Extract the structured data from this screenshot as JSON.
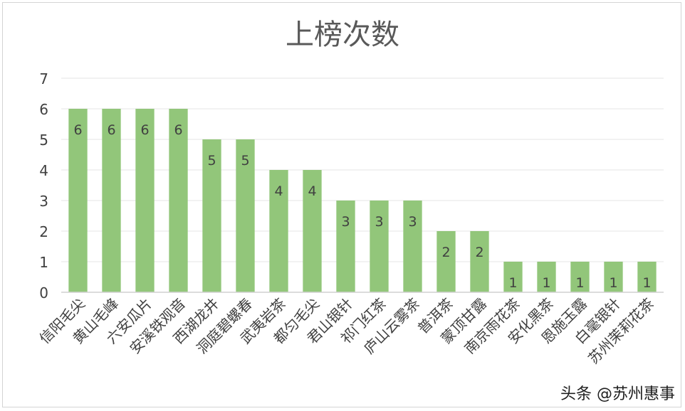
{
  "chart_data": {
    "type": "bar",
    "title": "上榜次数",
    "xlabel": "",
    "ylabel": "",
    "ylim": [
      0,
      7
    ],
    "yticks": [
      0,
      1,
      2,
      3,
      4,
      5,
      6,
      7
    ],
    "grid": true,
    "legend": "none",
    "bar_color": "#92c67a",
    "categories": [
      "信阳毛尖",
      "黄山毛峰",
      "六安瓜片",
      "安溪铁观音",
      "西湖龙井",
      "洞庭碧螺春",
      "武夷岩茶",
      "都匀毛尖",
      "君山银针",
      "祁门红茶",
      "庐山云雾茶",
      "普洱茶",
      "蒙顶甘露",
      "南京雨花茶",
      "安化黑茶",
      "恩施玉露",
      "白毫银针",
      "苏州茉莉花茶"
    ],
    "values": [
      6,
      6,
      6,
      6,
      5,
      5,
      4,
      4,
      3,
      3,
      3,
      2,
      2,
      1,
      1,
      1,
      1,
      1
    ]
  },
  "watermark": "头条 @苏州惠事"
}
